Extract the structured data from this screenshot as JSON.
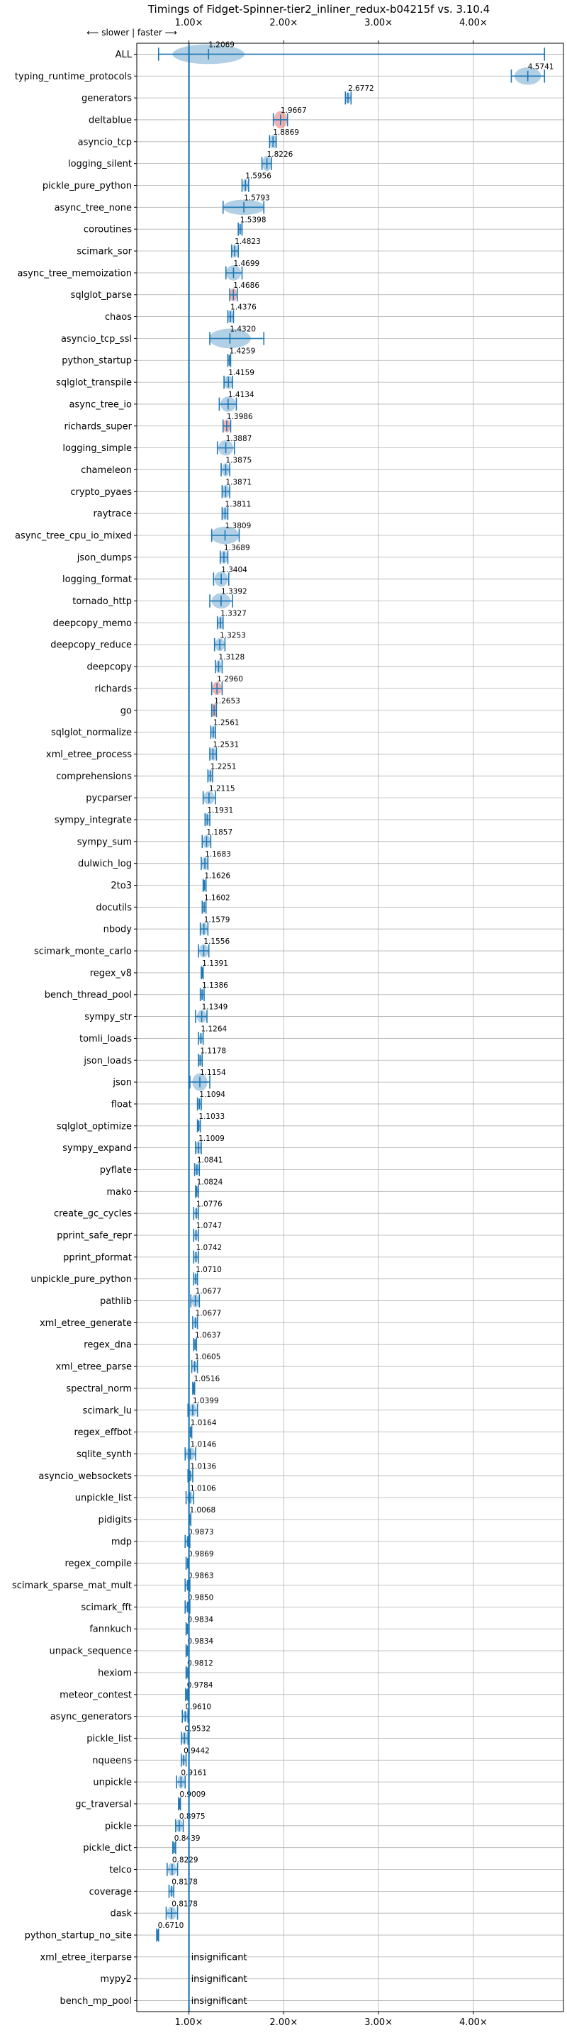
{
  "chart_data": {
    "type": "violin",
    "title": "Timings of Fidget-Spinner-tier2_inliner_redux-b04215f vs. 3.10.4",
    "direction_note": "⟵ slower | faster ⟶",
    "x_ticks": [
      "1.00×",
      "2.00×",
      "3.00×",
      "4.00×"
    ],
    "x_tick_values": [
      1,
      2,
      3,
      4
    ],
    "xlim": [
      0.45,
      4.95
    ],
    "reference_line": 1.0,
    "colors": {
      "violin": "#1f77b4",
      "slower": "#d62728",
      "grid": "#b0b0b0"
    },
    "insignificant_label": "insignificant",
    "benchmarks": [
      {
        "name": "ALL",
        "value": 1.2069,
        "label": "1.2069",
        "lo": 0.68,
        "hi": 4.75,
        "vw": 0.38,
        "vh": 0.45,
        "color": "blue"
      },
      {
        "name": "typing_runtime_protocols",
        "value": 4.5741,
        "label": "4.5741",
        "lo": 4.4,
        "hi": 4.75,
        "vw": 0.14,
        "vh": 0.4,
        "color": "blue"
      },
      {
        "name": "generators",
        "value": 2.6772,
        "label": "2.6772",
        "lo": 2.65,
        "hi": 2.71,
        "vw": 0.03,
        "vh": 0.25,
        "color": "blue"
      },
      {
        "name": "deltablue",
        "value": 1.9667,
        "label": "1.9667",
        "lo": 1.89,
        "hi": 2.04,
        "vw": 0.07,
        "vh": 0.4,
        "color": "red"
      },
      {
        "name": "asyncio_tcp",
        "value": 1.8869,
        "label": "1.8869",
        "lo": 1.85,
        "hi": 1.92,
        "vw": 0.04,
        "vh": 0.3,
        "color": "blue"
      },
      {
        "name": "logging_silent",
        "value": 1.8226,
        "label": "1.8226",
        "lo": 1.77,
        "hi": 1.87,
        "vw": 0.05,
        "vh": 0.35,
        "color": "blue"
      },
      {
        "name": "pickle_pure_python",
        "value": 1.5956,
        "label": "1.5956",
        "lo": 1.56,
        "hi": 1.63,
        "vw": 0.03,
        "vh": 0.3,
        "color": "blue"
      },
      {
        "name": "async_tree_none",
        "value": 1.5793,
        "label": "1.5793",
        "lo": 1.36,
        "hi": 1.79,
        "vw": 0.22,
        "vh": 0.35,
        "color": "blue"
      },
      {
        "name": "coroutines",
        "value": 1.5398,
        "label": "1.5398",
        "lo": 1.52,
        "hi": 1.56,
        "vw": 0.02,
        "vh": 0.25,
        "color": "blue"
      },
      {
        "name": "scimark_sor",
        "value": 1.4823,
        "label": "1.4823",
        "lo": 1.45,
        "hi": 1.52,
        "vw": 0.03,
        "vh": 0.3,
        "color": "blue"
      },
      {
        "name": "async_tree_memoization",
        "value": 1.4699,
        "label": "1.4699",
        "lo": 1.39,
        "hi": 1.56,
        "vw": 0.08,
        "vh": 0.35,
        "color": "blue"
      },
      {
        "name": "sqlglot_parse",
        "value": 1.4686,
        "label": "1.4686",
        "lo": 1.43,
        "hi": 1.51,
        "vw": 0.04,
        "vh": 0.3,
        "color": "red"
      },
      {
        "name": "chaos",
        "value": 1.4376,
        "label": "1.4376",
        "lo": 1.41,
        "hi": 1.47,
        "vw": 0.03,
        "vh": 0.3,
        "color": "blue"
      },
      {
        "name": "asyncio_tcp_ssl",
        "value": 1.432,
        "label": "1.4320",
        "lo": 1.22,
        "hi": 1.79,
        "vw": 0.22,
        "vh": 0.45,
        "color": "blue"
      },
      {
        "name": "python_startup",
        "value": 1.4259,
        "label": "1.4259",
        "lo": 1.41,
        "hi": 1.44,
        "vw": 0.015,
        "vh": 0.25,
        "color": "blue"
      },
      {
        "name": "sqlglot_transpile",
        "value": 1.4159,
        "label": "1.4159",
        "lo": 1.37,
        "hi": 1.46,
        "vw": 0.05,
        "vh": 0.3,
        "color": "blue"
      },
      {
        "name": "async_tree_io",
        "value": 1.4134,
        "label": "1.4134",
        "lo": 1.32,
        "hi": 1.5,
        "vw": 0.08,
        "vh": 0.35,
        "color": "blue"
      },
      {
        "name": "richards_super",
        "value": 1.3986,
        "label": "1.3986",
        "lo": 1.36,
        "hi": 1.44,
        "vw": 0.04,
        "vh": 0.3,
        "color": "red"
      },
      {
        "name": "logging_simple",
        "value": 1.3887,
        "label": "1.3887",
        "lo": 1.3,
        "hi": 1.48,
        "vw": 0.08,
        "vh": 0.35,
        "color": "blue"
      },
      {
        "name": "chameleon",
        "value": 1.3875,
        "label": "1.3875",
        "lo": 1.34,
        "hi": 1.43,
        "vw": 0.04,
        "vh": 0.3,
        "color": "blue"
      },
      {
        "name": "crypto_pyaes",
        "value": 1.3871,
        "label": "1.3871",
        "lo": 1.35,
        "hi": 1.43,
        "vw": 0.04,
        "vh": 0.3,
        "color": "blue"
      },
      {
        "name": "raytrace",
        "value": 1.3811,
        "label": "1.3811",
        "lo": 1.35,
        "hi": 1.41,
        "vw": 0.03,
        "vh": 0.3,
        "color": "blue"
      },
      {
        "name": "async_tree_cpu_io_mixed",
        "value": 1.3809,
        "label": "1.3809",
        "lo": 1.24,
        "hi": 1.53,
        "vw": 0.15,
        "vh": 0.4,
        "color": "blue"
      },
      {
        "name": "json_dumps",
        "value": 1.3689,
        "label": "1.3689",
        "lo": 1.33,
        "hi": 1.41,
        "vw": 0.04,
        "vh": 0.3,
        "color": "blue"
      },
      {
        "name": "logging_format",
        "value": 1.3404,
        "label": "1.3404",
        "lo": 1.26,
        "hi": 1.42,
        "vw": 0.07,
        "vh": 0.35,
        "color": "blue"
      },
      {
        "name": "tornado_http",
        "value": 1.3392,
        "label": "1.3392",
        "lo": 1.22,
        "hi": 1.46,
        "vw": 0.1,
        "vh": 0.35,
        "color": "blue"
      },
      {
        "name": "deepcopy_memo",
        "value": 1.3327,
        "label": "1.3327",
        "lo": 1.3,
        "hi": 1.36,
        "vw": 0.03,
        "vh": 0.3,
        "color": "blue"
      },
      {
        "name": "deepcopy_reduce",
        "value": 1.3253,
        "label": "1.3253",
        "lo": 1.27,
        "hi": 1.38,
        "vw": 0.05,
        "vh": 0.3,
        "color": "blue"
      },
      {
        "name": "deepcopy",
        "value": 1.3128,
        "label": "1.3128",
        "lo": 1.28,
        "hi": 1.35,
        "vw": 0.03,
        "vh": 0.3,
        "color": "blue"
      },
      {
        "name": "richards",
        "value": 1.296,
        "label": "1.2960",
        "lo": 1.24,
        "hi": 1.35,
        "vw": 0.05,
        "vh": 0.3,
        "color": "red"
      },
      {
        "name": "go",
        "value": 1.2653,
        "label": "1.2653",
        "lo": 1.24,
        "hi": 1.29,
        "vw": 0.03,
        "vh": 0.3,
        "color": "red"
      },
      {
        "name": "sqlglot_normalize",
        "value": 1.2561,
        "label": "1.2561",
        "lo": 1.23,
        "hi": 1.28,
        "vw": 0.025,
        "vh": 0.3,
        "color": "blue"
      },
      {
        "name": "xml_etree_process",
        "value": 1.2531,
        "label": "1.2531",
        "lo": 1.22,
        "hi": 1.29,
        "vw": 0.035,
        "vh": 0.3,
        "color": "blue"
      },
      {
        "name": "comprehensions",
        "value": 1.2251,
        "label": "1.2251",
        "lo": 1.2,
        "hi": 1.25,
        "vw": 0.025,
        "vh": 0.3,
        "color": "blue"
      },
      {
        "name": "pycparser",
        "value": 1.2115,
        "label": "1.2115",
        "lo": 1.15,
        "hi": 1.28,
        "vw": 0.06,
        "vh": 0.3,
        "color": "blue"
      },
      {
        "name": "sympy_integrate",
        "value": 1.1931,
        "label": "1.1931",
        "lo": 1.17,
        "hi": 1.22,
        "vw": 0.025,
        "vh": 0.3,
        "color": "blue"
      },
      {
        "name": "sympy_sum",
        "value": 1.1857,
        "label": "1.1857",
        "lo": 1.14,
        "hi": 1.23,
        "vw": 0.04,
        "vh": 0.3,
        "color": "blue"
      },
      {
        "name": "dulwich_log",
        "value": 1.1683,
        "label": "1.1683",
        "lo": 1.13,
        "hi": 1.2,
        "vw": 0.035,
        "vh": 0.3,
        "color": "blue"
      },
      {
        "name": "2to3",
        "value": 1.1626,
        "label": "1.1626",
        "lo": 1.15,
        "hi": 1.18,
        "vw": 0.015,
        "vh": 0.25,
        "color": "blue"
      },
      {
        "name": "docutils",
        "value": 1.1602,
        "label": "1.1602",
        "lo": 1.14,
        "hi": 1.18,
        "vw": 0.02,
        "vh": 0.25,
        "color": "blue"
      },
      {
        "name": "nbody",
        "value": 1.1579,
        "label": "1.1579",
        "lo": 1.12,
        "hi": 1.2,
        "vw": 0.035,
        "vh": 0.3,
        "color": "blue"
      },
      {
        "name": "scimark_monte_carlo",
        "value": 1.1556,
        "label": "1.1556",
        "lo": 1.1,
        "hi": 1.21,
        "vw": 0.05,
        "vh": 0.3,
        "color": "blue"
      },
      {
        "name": "regex_v8",
        "value": 1.1391,
        "label": "1.1391",
        "lo": 1.13,
        "hi": 1.15,
        "vw": 0.01,
        "vh": 0.25,
        "color": "blue"
      },
      {
        "name": "bench_thread_pool",
        "value": 1.1386,
        "label": "1.1386",
        "lo": 1.12,
        "hi": 1.16,
        "vw": 0.015,
        "vh": 0.25,
        "color": "blue"
      },
      {
        "name": "sympy_str",
        "value": 1.1349,
        "label": "1.1349",
        "lo": 1.07,
        "hi": 1.19,
        "vw": 0.05,
        "vh": 0.3,
        "color": "blue"
      },
      {
        "name": "tomli_loads",
        "value": 1.1264,
        "label": "1.1264",
        "lo": 1.1,
        "hi": 1.15,
        "vw": 0.02,
        "vh": 0.25,
        "color": "blue"
      },
      {
        "name": "json_loads",
        "value": 1.1178,
        "label": "1.1178",
        "lo": 1.1,
        "hi": 1.14,
        "vw": 0.02,
        "vh": 0.25,
        "color": "blue"
      },
      {
        "name": "json",
        "value": 1.1154,
        "label": "1.1154",
        "lo": 1.01,
        "hi": 1.22,
        "vw": 0.08,
        "vh": 0.4,
        "color": "blue"
      },
      {
        "name": "float",
        "value": 1.1094,
        "label": "1.1094",
        "lo": 1.09,
        "hi": 1.13,
        "vw": 0.02,
        "vh": 0.25,
        "color": "blue"
      },
      {
        "name": "sqlglot_optimize",
        "value": 1.1033,
        "label": "1.1033",
        "lo": 1.09,
        "hi": 1.12,
        "vw": 0.015,
        "vh": 0.25,
        "color": "blue"
      },
      {
        "name": "sympy_expand",
        "value": 1.1009,
        "label": "1.1009",
        "lo": 1.07,
        "hi": 1.13,
        "vw": 0.03,
        "vh": 0.3,
        "color": "blue"
      },
      {
        "name": "pyflate",
        "value": 1.0841,
        "label": "1.0841",
        "lo": 1.06,
        "hi": 1.11,
        "vw": 0.025,
        "vh": 0.25,
        "color": "blue"
      },
      {
        "name": "mako",
        "value": 1.0824,
        "label": "1.0824",
        "lo": 1.07,
        "hi": 1.1,
        "vw": 0.015,
        "vh": 0.25,
        "color": "blue"
      },
      {
        "name": "create_gc_cycles",
        "value": 1.0776,
        "label": "1.0776",
        "lo": 1.05,
        "hi": 1.1,
        "vw": 0.02,
        "vh": 0.25,
        "color": "blue"
      },
      {
        "name": "pprint_safe_repr",
        "value": 1.0747,
        "label": "1.0747",
        "lo": 1.05,
        "hi": 1.1,
        "vw": 0.02,
        "vh": 0.25,
        "color": "blue"
      },
      {
        "name": "pprint_pformat",
        "value": 1.0742,
        "label": "1.0742",
        "lo": 1.05,
        "hi": 1.1,
        "vw": 0.02,
        "vh": 0.25,
        "color": "blue"
      },
      {
        "name": "unpickle_pure_python",
        "value": 1.071,
        "label": "1.0710",
        "lo": 1.05,
        "hi": 1.09,
        "vw": 0.02,
        "vh": 0.25,
        "color": "blue"
      },
      {
        "name": "pathlib",
        "value": 1.0677,
        "label": "1.0677",
        "lo": 1.02,
        "hi": 1.11,
        "vw": 0.04,
        "vh": 0.3,
        "color": "blue"
      },
      {
        "name": "xml_etree_generate",
        "value": 1.0677,
        "label": "1.0677",
        "lo": 1.04,
        "hi": 1.09,
        "vw": 0.02,
        "vh": 0.25,
        "color": "blue"
      },
      {
        "name": "regex_dna",
        "value": 1.0637,
        "label": "1.0637",
        "lo": 1.05,
        "hi": 1.08,
        "vw": 0.015,
        "vh": 0.25,
        "color": "blue"
      },
      {
        "name": "xml_etree_parse",
        "value": 1.0605,
        "label": "1.0605",
        "lo": 1.03,
        "hi": 1.09,
        "vw": 0.025,
        "vh": 0.25,
        "color": "blue"
      },
      {
        "name": "spectral_norm",
        "value": 1.0516,
        "label": "1.0516",
        "lo": 1.04,
        "hi": 1.06,
        "vw": 0.01,
        "vh": 0.25,
        "color": "blue"
      },
      {
        "name": "scimark_lu",
        "value": 1.0399,
        "label": "1.0399",
        "lo": 0.99,
        "hi": 1.09,
        "vw": 0.04,
        "vh": 0.3,
        "color": "blue"
      },
      {
        "name": "regex_effbot",
        "value": 1.0164,
        "label": "1.0164",
        "lo": 1.0,
        "hi": 1.03,
        "vw": 0.015,
        "vh": 0.25,
        "color": "blue"
      },
      {
        "name": "sqlite_synth",
        "value": 1.0146,
        "label": "1.0146",
        "lo": 0.96,
        "hi": 1.07,
        "vw": 0.05,
        "vh": 0.3,
        "color": "blue"
      },
      {
        "name": "asyncio_websockets",
        "value": 1.0136,
        "label": "1.0136",
        "lo": 0.99,
        "hi": 1.04,
        "vw": 0.02,
        "vh": 0.25,
        "color": "blue"
      },
      {
        "name": "unpickle_list",
        "value": 1.0106,
        "label": "1.0106",
        "lo": 0.97,
        "hi": 1.05,
        "vw": 0.03,
        "vh": 0.3,
        "color": "blue"
      },
      {
        "name": "pidigits",
        "value": 1.0068,
        "label": "1.0068",
        "lo": 1.0,
        "hi": 1.02,
        "vw": 0.01,
        "vh": 0.25,
        "color": "blue"
      },
      {
        "name": "mdp",
        "value": 0.9873,
        "label": "0.9873",
        "lo": 0.96,
        "hi": 1.01,
        "vw": 0.02,
        "vh": 0.25,
        "color": "blue"
      },
      {
        "name": "regex_compile",
        "value": 0.9869,
        "label": "0.9869",
        "lo": 0.97,
        "hi": 1.0,
        "vw": 0.015,
        "vh": 0.25,
        "color": "blue"
      },
      {
        "name": "scimark_sparse_mat_mult",
        "value": 0.9863,
        "label": "0.9863",
        "lo": 0.96,
        "hi": 1.01,
        "vw": 0.02,
        "vh": 0.25,
        "color": "blue"
      },
      {
        "name": "scimark_fft",
        "value": 0.985,
        "label": "0.9850",
        "lo": 0.96,
        "hi": 1.01,
        "vw": 0.02,
        "vh": 0.25,
        "color": "blue"
      },
      {
        "name": "fannkuch",
        "value": 0.9834,
        "label": "0.9834",
        "lo": 0.97,
        "hi": 1.0,
        "vw": 0.015,
        "vh": 0.25,
        "color": "blue"
      },
      {
        "name": "unpack_sequence",
        "value": 0.9834,
        "label": "0.9834",
        "lo": 0.97,
        "hi": 1.0,
        "vw": 0.015,
        "vh": 0.25,
        "color": "blue"
      },
      {
        "name": "hexiom",
        "value": 0.9812,
        "label": "0.9812",
        "lo": 0.97,
        "hi": 0.995,
        "vw": 0.012,
        "vh": 0.25,
        "color": "blue"
      },
      {
        "name": "meteor_contest",
        "value": 0.9784,
        "label": "0.9784",
        "lo": 0.965,
        "hi": 0.99,
        "vw": 0.012,
        "vh": 0.25,
        "color": "blue"
      },
      {
        "name": "async_generators",
        "value": 0.961,
        "label": "0.9610",
        "lo": 0.93,
        "hi": 0.99,
        "vw": 0.025,
        "vh": 0.25,
        "color": "blue"
      },
      {
        "name": "pickle_list",
        "value": 0.9532,
        "label": "0.9532",
        "lo": 0.92,
        "hi": 0.99,
        "vw": 0.03,
        "vh": 0.3,
        "color": "blue"
      },
      {
        "name": "nqueens",
        "value": 0.9442,
        "label": "0.9442",
        "lo": 0.92,
        "hi": 0.97,
        "vw": 0.02,
        "vh": 0.25,
        "color": "blue"
      },
      {
        "name": "unpickle",
        "value": 0.9161,
        "label": "0.9161",
        "lo": 0.87,
        "hi": 0.96,
        "vw": 0.035,
        "vh": 0.3,
        "color": "blue"
      },
      {
        "name": "gc_traversal",
        "value": 0.9009,
        "label": "0.9009",
        "lo": 0.89,
        "hi": 0.91,
        "vw": 0.01,
        "vh": 0.25,
        "color": "blue"
      },
      {
        "name": "pickle",
        "value": 0.8975,
        "label": "0.8975",
        "lo": 0.86,
        "hi": 0.94,
        "vw": 0.035,
        "vh": 0.3,
        "color": "blue"
      },
      {
        "name": "pickle_dict",
        "value": 0.8439,
        "label": "0.8439",
        "lo": 0.83,
        "hi": 0.86,
        "vw": 0.012,
        "vh": 0.25,
        "color": "blue"
      },
      {
        "name": "telco",
        "value": 0.8229,
        "label": "0.8229",
        "lo": 0.77,
        "hi": 0.88,
        "vw": 0.045,
        "vh": 0.3,
        "color": "blue"
      },
      {
        "name": "coverage",
        "value": 0.8178,
        "label": "0.8178",
        "lo": 0.79,
        "hi": 0.84,
        "vw": 0.02,
        "vh": 0.25,
        "color": "blue"
      },
      {
        "name": "dask",
        "value": 0.8178,
        "label": "0.8178",
        "lo": 0.76,
        "hi": 0.88,
        "vw": 0.05,
        "vh": 0.3,
        "color": "blue"
      },
      {
        "name": "python_startup_no_site",
        "value": 0.671,
        "label": "0.6710",
        "lo": 0.66,
        "hi": 0.68,
        "vw": 0.008,
        "vh": 0.25,
        "color": "blue"
      },
      {
        "name": "xml_etree_iterparse",
        "insignificant": true
      },
      {
        "name": "mypy2",
        "insignificant": true
      },
      {
        "name": "bench_mp_pool",
        "insignificant": true
      }
    ]
  }
}
